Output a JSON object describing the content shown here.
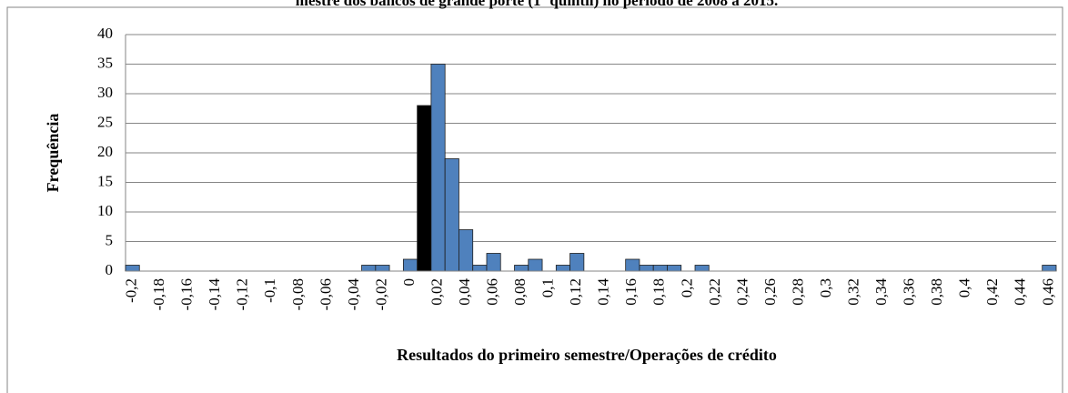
{
  "chart_data": {
    "type": "bar",
    "title": "mestre dos bancos de grande porte (1º quintil) no período de 2008 a 2015.",
    "xlabel": "Resultados do primeiro semestre/Operações de crédito",
    "ylabel": "Frequência",
    "categories": [
      "-0,2",
      null,
      "-0,18",
      null,
      "-0,16",
      null,
      "-0,14",
      null,
      "-0,12",
      null,
      "-0,1",
      null,
      "-0,08",
      null,
      "-0,06",
      null,
      "-0,04",
      null,
      "-0,02",
      null,
      "0",
      null,
      "0,02",
      null,
      "0,04",
      null,
      "0,06",
      null,
      "0,08",
      null,
      "0,1",
      null,
      "0,12",
      null,
      "0,14",
      null,
      "0,16",
      null,
      "0,18",
      null,
      "0,2",
      null,
      "0,22",
      null,
      "0,24",
      null,
      "0,26",
      null,
      "0,28",
      null,
      "0,3",
      null,
      "0,32",
      null,
      "0,34",
      null,
      "0,36",
      null,
      "0,38",
      null,
      "0,4",
      null,
      "0,42",
      null,
      "0,44",
      null,
      "0,46"
    ],
    "values": [
      1,
      0,
      0,
      0,
      0,
      0,
      0,
      0,
      0,
      0,
      0,
      0,
      0,
      0,
      0,
      0,
      0,
      1,
      1,
      0,
      2,
      28,
      35,
      19,
      7,
      1,
      3,
      0,
      1,
      2,
      0,
      1,
      3,
      0,
      0,
      0,
      2,
      1,
      1,
      1,
      0,
      1,
      0,
      0,
      0,
      0,
      0,
      0,
      0,
      0,
      0,
      0,
      0,
      0,
      0,
      0,
      0,
      0,
      0,
      0,
      0,
      0,
      0,
      0,
      0,
      0,
      1
    ],
    "colors": [
      "#4f81bd",
      "#4f81bd",
      "#4f81bd",
      "#4f81bd",
      "#4f81bd",
      "#4f81bd",
      "#4f81bd",
      "#4f81bd",
      "#4f81bd",
      "#4f81bd",
      "#4f81bd",
      "#4f81bd",
      "#4f81bd",
      "#4f81bd",
      "#4f81bd",
      "#4f81bd",
      "#4f81bd",
      "#4f81bd",
      "#4f81bd",
      "#4f81bd",
      "#4f81bd",
      "#000000",
      "#4f81bd",
      "#4f81bd",
      "#4f81bd",
      "#4f81bd",
      "#4f81bd",
      "#4f81bd",
      "#4f81bd",
      "#4f81bd",
      "#4f81bd",
      "#4f81bd",
      "#4f81bd",
      "#4f81bd",
      "#4f81bd",
      "#4f81bd",
      "#4f81bd",
      "#4f81bd",
      "#4f81bd",
      "#4f81bd",
      "#4f81bd",
      "#4f81bd",
      "#4f81bd",
      "#4f81bd",
      "#4f81bd",
      "#4f81bd",
      "#4f81bd",
      "#4f81bd",
      "#4f81bd",
      "#4f81bd",
      "#4f81bd",
      "#4f81bd",
      "#4f81bd",
      "#4f81bd",
      "#4f81bd",
      "#4f81bd",
      "#4f81bd",
      "#4f81bd",
      "#4f81bd",
      "#4f81bd",
      "#4f81bd",
      "#4f81bd",
      "#4f81bd",
      "#4f81bd",
      "#4f81bd",
      "#4f81bd",
      "#4f81bd"
    ],
    "ylim": [
      0,
      40
    ],
    "yticks": [
      0,
      5,
      10,
      15,
      20,
      25,
      30,
      35,
      40
    ],
    "grid": true
  }
}
